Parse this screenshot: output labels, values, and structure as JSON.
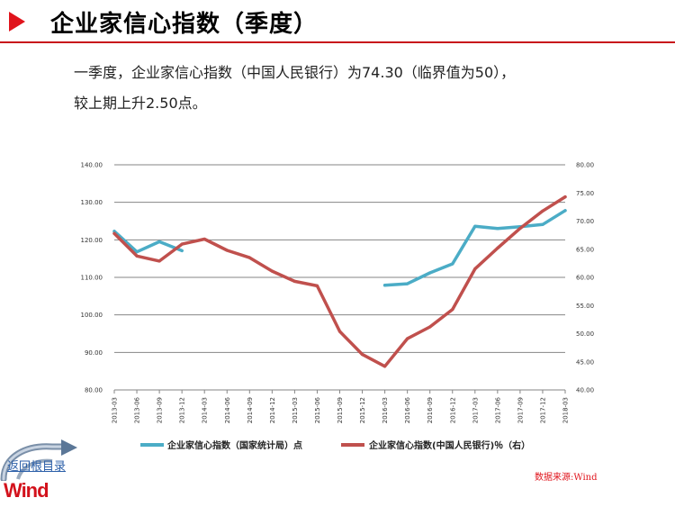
{
  "header": {
    "title": "企业家信心指数（季度）"
  },
  "summary": {
    "line1": "一季度，企业家信心指数（中国人民银行）为74.30（临界值为50），",
    "line2": "较上期上升2.50点。"
  },
  "footer": {
    "source": "数据来源:Wind",
    "home_link": "返回根目录",
    "logo_text": "Wind"
  },
  "colors": {
    "accent": "#e0141c",
    "series_nbs": "#4bacc6",
    "series_pboc": "#c0504d"
  },
  "chart_data": {
    "type": "line",
    "categories": [
      "2013-03",
      "2013-06",
      "2013-09",
      "2013-12",
      "2014-03",
      "2014-06",
      "2014-09",
      "2014-12",
      "2015-03",
      "2015-06",
      "2015-09",
      "2015-12",
      "2016-03",
      "2016-06",
      "2016-09",
      "2016-12",
      "2017-03",
      "2017-06",
      "2017-09",
      "2017-12",
      "2018-03"
    ],
    "series": [
      {
        "name": "企业家信心指数（国家统计局）点",
        "axis": "left",
        "color": "#4bacc6",
        "values": [
          122.3,
          116.8,
          119.5,
          117.1,
          null,
          null,
          null,
          null,
          null,
          null,
          null,
          null,
          107.9,
          108.3,
          111.2,
          113.6,
          123.6,
          123.0,
          123.5,
          124.1,
          127.8
        ]
      },
      {
        "name": "企业家信心指数(中国人民银行)％（右）",
        "axis": "right",
        "color": "#c0504d",
        "values": [
          67.8,
          63.8,
          62.9,
          65.9,
          66.8,
          64.8,
          63.5,
          61.1,
          59.3,
          58.5,
          50.4,
          46.3,
          44.2,
          49.1,
          51.2,
          54.3,
          61.5,
          65.2,
          68.7,
          71.8,
          74.3
        ]
      }
    ],
    "y_left": {
      "min": 80,
      "max": 140,
      "ticks": [
        "140.00",
        "130.00",
        "120.00",
        "110.00",
        "100.00",
        "90.00",
        "80.00"
      ]
    },
    "y_right": {
      "min": 40,
      "max": 80,
      "ticks": [
        "80.00",
        "75.00",
        "70.00",
        "65.00",
        "60.00",
        "55.00",
        "50.00",
        "45.00",
        "40.00"
      ]
    },
    "grid": true,
    "legend_position": "bottom"
  }
}
